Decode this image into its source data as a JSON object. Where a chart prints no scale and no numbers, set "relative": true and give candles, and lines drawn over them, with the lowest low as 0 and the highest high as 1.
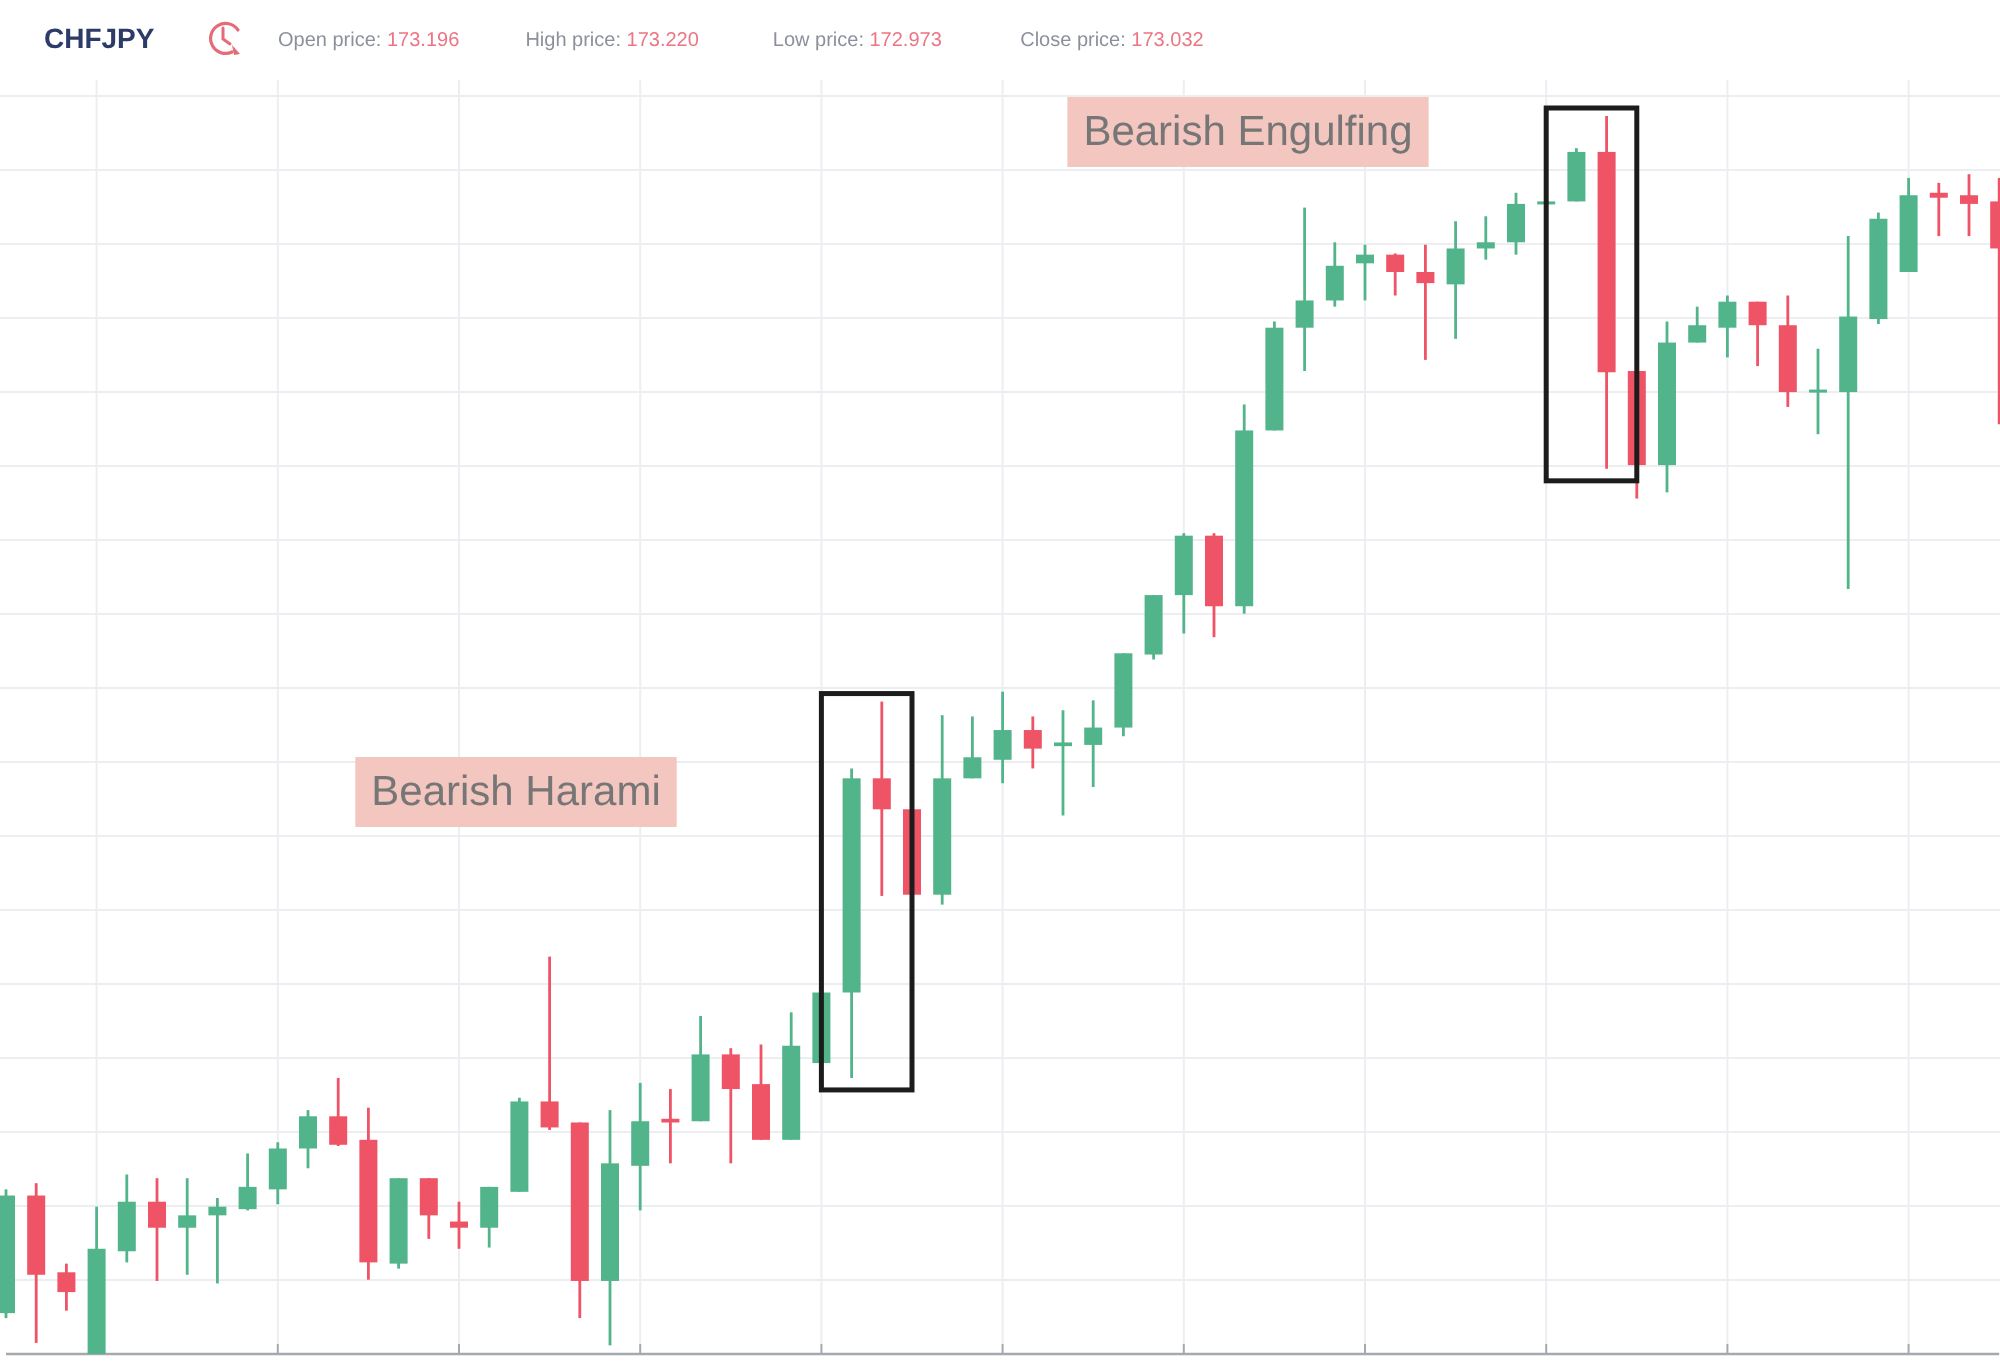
{
  "chart_data": {
    "type": "candlestick",
    "title": "CHFJPY",
    "relative": true,
    "grid": true,
    "categories": [
      null,
      null,
      null,
      null,
      null,
      null,
      null,
      null,
      null,
      null,
      null,
      null,
      null,
      null,
      null,
      null,
      null,
      null,
      null,
      null,
      null,
      null,
      null,
      null,
      null,
      null,
      null,
      null,
      null,
      null,
      null,
      null,
      null,
      null,
      null,
      null,
      null,
      null,
      null,
      null,
      null,
      null,
      null,
      null,
      null,
      null,
      null,
      null,
      null,
      null,
      null,
      null,
      null,
      null,
      null,
      null,
      null,
      null,
      null,
      null,
      null,
      null,
      null,
      null,
      null,
      null,
      null
    ],
    "ohlc": [
      [
        0.033,
        0.133,
        0.029,
        0.128
      ],
      [
        0.128,
        0.138,
        0.009,
        0.064
      ],
      [
        0.066,
        0.073,
        0.035,
        0.05
      ],
      [
        0.0,
        0.119,
        0.0,
        0.085
      ],
      [
        0.083,
        0.145,
        0.074,
        0.123
      ],
      [
        0.123,
        0.142,
        0.059,
        0.102
      ],
      [
        0.102,
        0.142,
        0.064,
        0.112
      ],
      [
        0.112,
        0.126,
        0.057,
        0.119
      ],
      [
        0.117,
        0.162,
        0.116,
        0.135
      ],
      [
        0.133,
        0.171,
        0.121,
        0.166
      ],
      [
        0.166,
        0.197,
        0.15,
        0.192
      ],
      [
        0.192,
        0.223,
        0.168,
        0.169
      ],
      [
        0.173,
        0.199,
        0.06,
        0.074
      ],
      [
        0.073,
        0.142,
        0.069,
        0.142
      ],
      [
        0.142,
        0.142,
        0.093,
        0.112
      ],
      [
        0.107,
        0.123,
        0.085,
        0.102
      ],
      [
        0.102,
        0.135,
        0.086,
        0.135
      ],
      [
        0.131,
        0.207,
        0.131,
        0.204
      ],
      [
        0.204,
        0.321,
        0.181,
        0.183
      ],
      [
        0.187,
        0.187,
        0.029,
        0.059
      ],
      [
        0.059,
        0.197,
        0.007,
        0.154
      ],
      [
        0.152,
        0.219,
        0.116,
        0.188
      ],
      [
        0.19,
        0.214,
        0.154,
        0.187
      ],
      [
        0.188,
        0.273,
        0.188,
        0.242
      ],
      [
        0.242,
        0.247,
        0.154,
        0.214
      ],
      [
        0.218,
        0.25,
        0.173,
        0.173
      ],
      [
        0.173,
        0.276,
        0.173,
        0.249
      ],
      [
        0.235,
        0.292,
        0.235,
        0.292
      ],
      [
        0.292,
        0.473,
        0.223,
        0.465
      ],
      [
        0.465,
        0.527,
        0.37,
        0.44
      ],
      [
        0.44,
        0.44,
        0.371,
        0.371
      ],
      [
        0.371,
        0.516,
        0.363,
        0.465
      ],
      [
        0.465,
        0.515,
        0.465,
        0.482
      ],
      [
        0.48,
        0.535,
        0.461,
        0.504
      ],
      [
        0.504,
        0.515,
        0.473,
        0.489
      ],
      [
        0.491,
        0.52,
        0.435,
        0.494
      ],
      [
        0.492,
        0.528,
        0.458,
        0.506
      ],
      [
        0.506,
        0.566,
        0.499,
        0.566
      ],
      [
        0.565,
        0.613,
        0.561,
        0.613
      ],
      [
        0.613,
        0.663,
        0.582,
        0.661
      ],
      [
        0.661,
        0.663,
        0.579,
        0.604
      ],
      [
        0.604,
        0.767,
        0.598,
        0.746
      ],
      [
        0.746,
        0.834,
        0.746,
        0.829
      ],
      [
        0.829,
        0.926,
        0.794,
        0.851
      ],
      [
        0.851,
        0.898,
        0.846,
        0.879
      ],
      [
        0.881,
        0.896,
        0.851,
        0.888
      ],
      [
        0.888,
        0.889,
        0.855,
        0.874
      ],
      [
        0.874,
        0.896,
        0.803,
        0.865
      ],
      [
        0.864,
        0.915,
        0.82,
        0.893
      ],
      [
        0.893,
        0.919,
        0.884,
        0.898
      ],
      [
        0.898,
        0.938,
        0.888,
        0.929
      ],
      [
        0.929,
        0.933,
        0.929,
        0.931
      ],
      [
        0.931,
        0.974,
        0.931,
        0.971
      ],
      [
        0.971,
        1.0,
        0.715,
        0.793
      ],
      [
        0.794,
        0.794,
        0.691,
        0.718
      ],
      [
        0.718,
        0.834,
        0.696,
        0.817
      ],
      [
        0.817,
        0.846,
        0.817,
        0.831
      ],
      [
        0.829,
        0.855,
        0.805,
        0.85
      ],
      [
        0.85,
        0.85,
        0.798,
        0.831
      ],
      [
        0.831,
        0.855,
        0.765,
        0.777
      ],
      [
        0.777,
        0.812,
        0.743,
        0.779
      ],
      [
        0.777,
        0.903,
        0.618,
        0.838
      ],
      [
        0.836,
        0.922,
        0.832,
        0.917
      ],
      [
        0.874,
        0.95,
        0.874,
        0.936
      ],
      [
        0.938,
        0.946,
        0.903,
        0.934
      ],
      [
        0.936,
        0.953,
        0.903,
        0.929
      ],
      [
        0.931,
        0.95,
        0.751,
        0.893
      ]
    ],
    "colors": [
      "#52b48a",
      "#ee5366",
      "#ee5366",
      "#52b48a",
      "#52b48a",
      "#ee5366",
      "#52b48a",
      "#52b48a",
      "#52b48a",
      "#52b48a",
      "#52b48a",
      "#ee5366",
      "#ee5366",
      "#52b48a",
      "#ee5366",
      "#ee5366",
      "#52b48a",
      "#52b48a",
      "#ee5366",
      "#ee5366",
      "#52b48a",
      "#52b48a",
      "#ee5366",
      "#52b48a",
      "#ee5366",
      "#ee5366",
      "#52b48a",
      "#52b48a",
      "#52b48a",
      "#ee5366",
      "#ee5366",
      "#52b48a",
      "#52b48a",
      "#52b48a",
      "#ee5366",
      "#52b48a",
      "#52b48a",
      "#52b48a",
      "#52b48a",
      "#52b48a",
      "#ee5366",
      "#52b48a",
      "#52b48a",
      "#52b48a",
      "#52b48a",
      "#52b48a",
      "#ee5366",
      "#ee5366",
      "#52b48a",
      "#52b48a",
      "#52b48a",
      "#52b48a",
      "#52b48a",
      "#ee5366",
      "#ee5366",
      "#52b48a",
      "#52b48a",
      "#52b48a",
      "#ee5366",
      "#ee5366",
      "#52b48a",
      "#52b48a",
      "#52b48a",
      "#52b48a",
      "#ee5366",
      "#ee5366",
      "#ee5366"
    ],
    "annotations": [
      "Open price: 173.196",
      "High price: 173.220",
      "Low price: 172.973",
      "Close price: 173.032",
      "Bearish Harami",
      "Bearish Engulfing"
    ]
  }
}
